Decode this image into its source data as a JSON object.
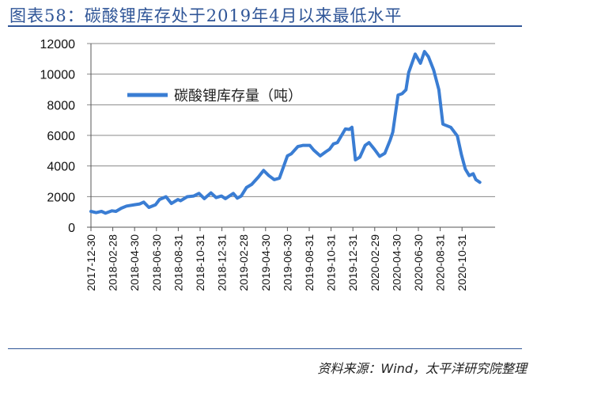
{
  "title": "图表58：碳酸锂库存处于2019年4月以来最低水平",
  "source": "资料来源：Wind，太平洋研究院整理",
  "chart_data": {
    "type": "line",
    "title": "图表58：碳酸锂库存处于2019年4月以来最低水平",
    "xlabel": "",
    "ylabel": "",
    "x_unit": "months since 2017-12-30",
    "ylim": [
      0,
      12000
    ],
    "yticks": [
      0,
      2000,
      4000,
      6000,
      8000,
      10000,
      12000
    ],
    "xticks": [
      "2017-12-30",
      "2018-02-28",
      "2018-04-30",
      "2018-06-30",
      "2018-08-31",
      "2018-10-31",
      "2018-12-31",
      "2019-02-28",
      "2019-04-30",
      "2019-06-30",
      "2019-08-31",
      "2019-10-31",
      "2019-12-31",
      "2020-02-29",
      "2020-04-30",
      "2020-06-30",
      "2020-08-31",
      "2020-10-31"
    ],
    "grid": true,
    "legend_position": "top-left",
    "color": "#3a7dd3",
    "series": [
      {
        "name": "碳酸锂库存量（吨）",
        "points": [
          [
            0,
            1036
          ],
          [
            0.48,
            950
          ],
          [
            0.97,
            1036
          ],
          [
            1.33,
            915
          ],
          [
            1.93,
            1070
          ],
          [
            2.29,
            1036
          ],
          [
            2.78,
            1243
          ],
          [
            3.26,
            1380
          ],
          [
            3.99,
            1470
          ],
          [
            4.47,
            1520
          ],
          [
            4.83,
            1640
          ],
          [
            5.31,
            1295
          ],
          [
            5.92,
            1470
          ],
          [
            6.28,
            1810
          ],
          [
            6.88,
            1990
          ],
          [
            7.37,
            1550
          ],
          [
            7.97,
            1810
          ],
          [
            8.21,
            1730
          ],
          [
            8.82,
            1990
          ],
          [
            9.42,
            2040
          ],
          [
            9.9,
            2210
          ],
          [
            10.39,
            1865
          ],
          [
            10.99,
            2245
          ],
          [
            11.47,
            1935
          ],
          [
            11.96,
            2040
          ],
          [
            12.32,
            1865
          ],
          [
            13.04,
            2210
          ],
          [
            13.41,
            1900
          ],
          [
            13.77,
            2040
          ],
          [
            14.25,
            2590
          ],
          [
            14.73,
            2800
          ],
          [
            15.34,
            3280
          ],
          [
            15.82,
            3710
          ],
          [
            16.3,
            3370
          ],
          [
            16.79,
            3110
          ],
          [
            17.27,
            3200
          ],
          [
            18.0,
            4660
          ],
          [
            18.36,
            4800
          ],
          [
            18.96,
            5270
          ],
          [
            19.44,
            5350
          ],
          [
            20.05,
            5350
          ],
          [
            20.41,
            5040
          ],
          [
            21.01,
            4660
          ],
          [
            21.5,
            4920
          ],
          [
            21.86,
            5095
          ],
          [
            22.22,
            5440
          ],
          [
            22.58,
            5530
          ],
          [
            23.31,
            6420
          ],
          [
            23.67,
            6390
          ],
          [
            23.91,
            6530
          ],
          [
            24.23,
            4400
          ],
          [
            24.64,
            4580
          ],
          [
            25.12,
            5350
          ],
          [
            25.48,
            5530
          ],
          [
            25.97,
            5095
          ],
          [
            26.45,
            4630
          ],
          [
            26.93,
            4830
          ],
          [
            27.42,
            5700
          ],
          [
            27.66,
            6220
          ],
          [
            28.14,
            8635
          ],
          [
            28.5,
            8720
          ],
          [
            28.86,
            8980
          ],
          [
            29.11,
            10100
          ],
          [
            29.71,
            11310
          ],
          [
            30.19,
            10710
          ],
          [
            30.56,
            11480
          ],
          [
            30.92,
            11140
          ],
          [
            31.4,
            10275
          ],
          [
            31.88,
            8980
          ],
          [
            32.25,
            6735
          ],
          [
            32.97,
            6530
          ],
          [
            33.57,
            5960
          ],
          [
            33.94,
            4750
          ],
          [
            34.3,
            3800
          ],
          [
            34.66,
            3370
          ],
          [
            35.02,
            3490
          ],
          [
            35.27,
            3110
          ],
          [
            35.63,
            2935
          ]
        ]
      }
    ]
  }
}
